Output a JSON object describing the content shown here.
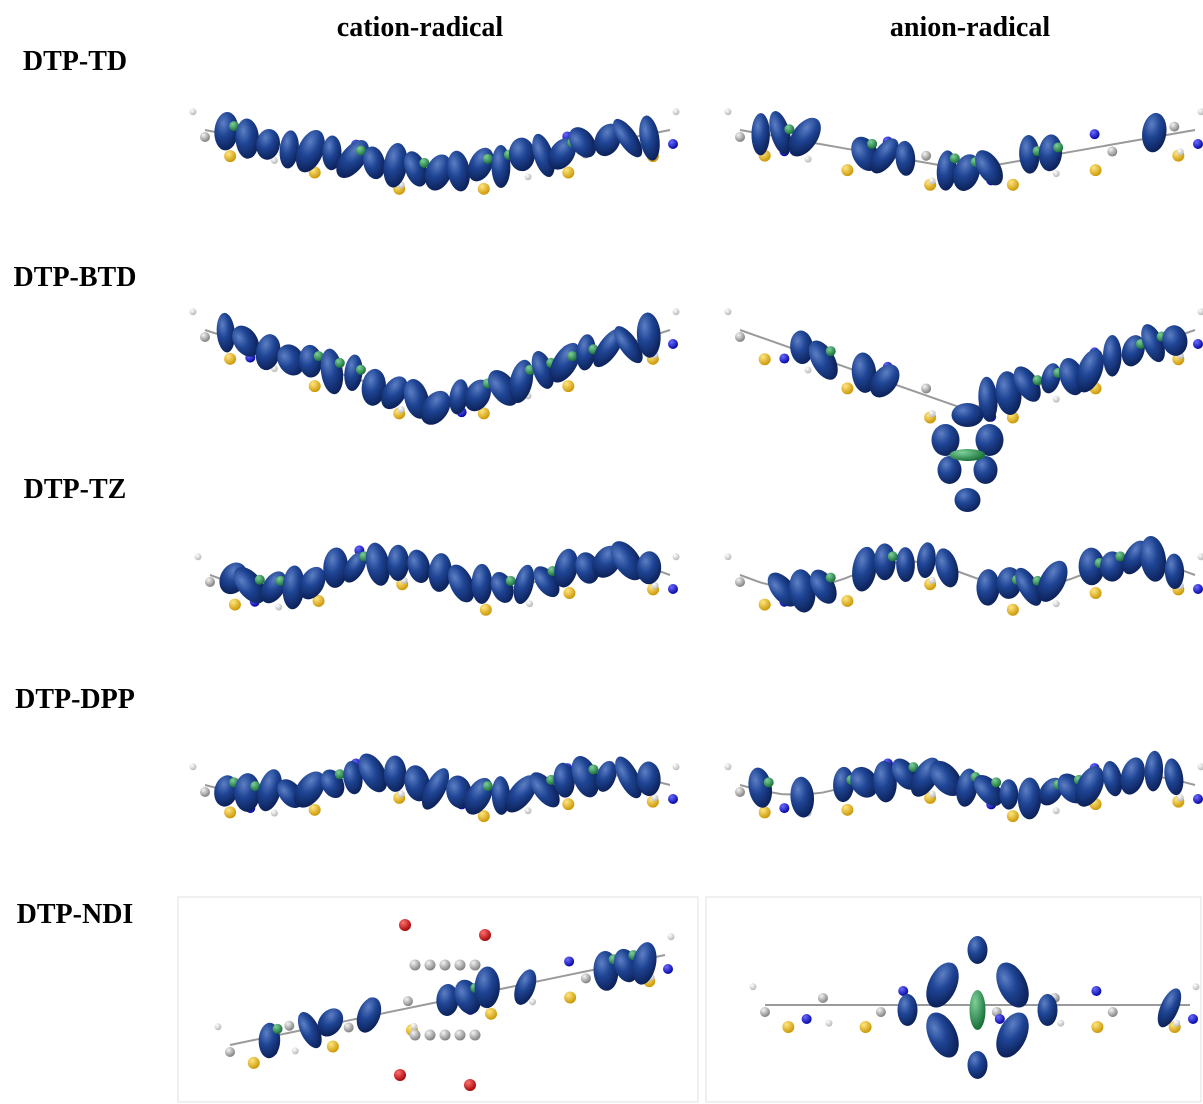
{
  "column_headers": [
    "cation-radical",
    "anion-radical"
  ],
  "rows": [
    {
      "label": "DTP-TD"
    },
    {
      "label": "DTP-BTD"
    },
    {
      "label": "DTP-TZ"
    },
    {
      "label": "DTP-DPP"
    },
    {
      "label": "DTP-NDI"
    }
  ]
}
